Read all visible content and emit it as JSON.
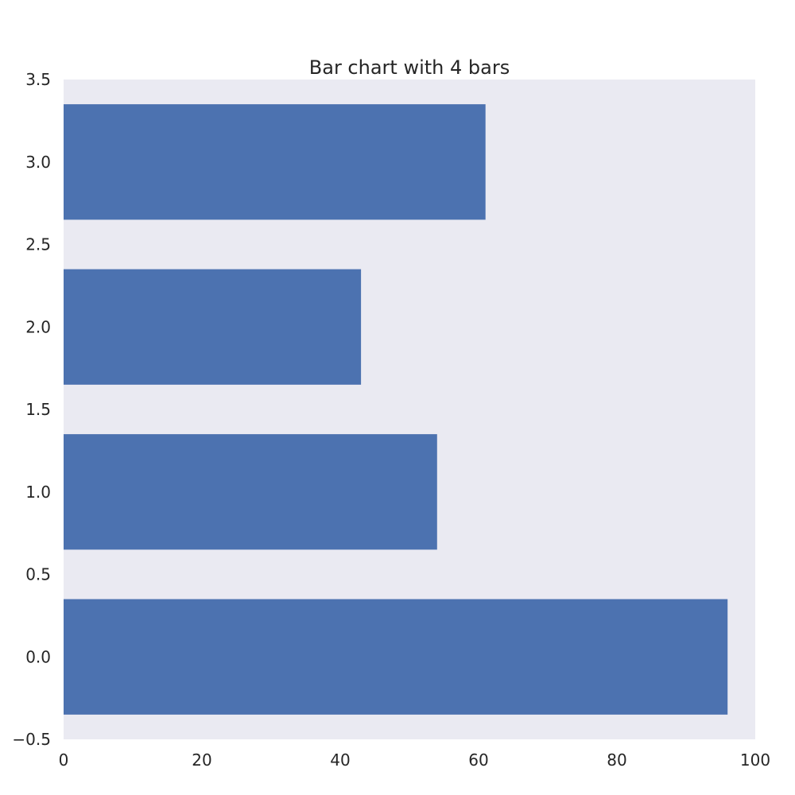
{
  "chart_data": {
    "type": "bar",
    "orientation": "horizontal",
    "title": "Bar chart with 4 bars",
    "xlabel": "",
    "ylabel": "",
    "categories": [
      0,
      1,
      2,
      3
    ],
    "values": [
      96,
      54,
      43,
      61
    ],
    "bar_height": 0.35,
    "xlim": [
      0,
      100
    ],
    "ylim": [
      -0.5,
      3.5
    ],
    "xticks": [
      0,
      20,
      40,
      60,
      80,
      100
    ],
    "xtick_labels": [
      "0",
      "20",
      "40",
      "60",
      "80",
      "100"
    ],
    "yticks": [
      -0.5,
      0,
      0.5,
      1,
      1.5,
      2,
      2.5,
      3,
      3.5
    ],
    "ytick_labels": [
      "−0.5",
      "0.0",
      "0.5",
      "1.0",
      "1.5",
      "2.0",
      "2.5",
      "3.0",
      "3.5"
    ],
    "grid": false,
    "legend": "none",
    "colors": {
      "bar": "#4c72b0",
      "plot_background": "#eaeaf2",
      "text": "#262626"
    }
  }
}
